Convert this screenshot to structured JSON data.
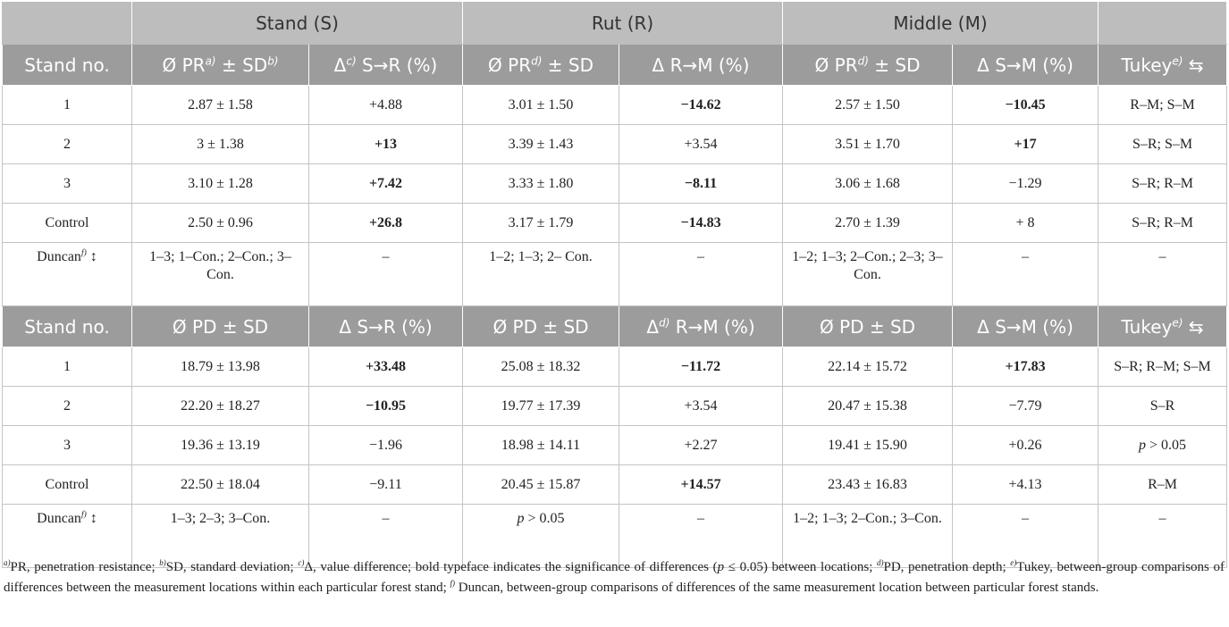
{
  "table": {
    "groups": [
      "Stand (S)",
      "Rut (R)",
      "Middle (M)"
    ],
    "sections": [
      {
        "header": [
          "Stand no.",
          [
            {
              "t": "Ø PR"
            },
            {
              "sup": "a)"
            },
            {
              "t": " ± SD"
            },
            {
              "sup": "b)"
            }
          ],
          [
            {
              "t": "Δ"
            },
            {
              "sup": "c)"
            },
            {
              "t": " S→R (%)"
            }
          ],
          [
            {
              "t": "Ø PR"
            },
            {
              "sup": "d)"
            },
            {
              "t": " ± SD"
            }
          ],
          "Δ R→M (%)",
          [
            {
              "t": "Ø PR"
            },
            {
              "sup": "d)"
            },
            {
              "t": " ± SD"
            }
          ],
          "Δ S→M (%)",
          [
            {
              "t": "Tukey"
            },
            {
              "sup": "e)"
            },
            {
              "t": " ⇆"
            }
          ]
        ],
        "rows": [
          [
            "1",
            "2.87 ± 1.58",
            "+4.88",
            "3.01 ± 1.50",
            [
              {
                "b": "−14.62"
              }
            ],
            "2.57 ± 1.50",
            [
              {
                "b": "−10.45"
              }
            ],
            "R–M; S–M"
          ],
          [
            "2",
            "3 ± 1.38",
            [
              {
                "b": "+13"
              }
            ],
            "3.39 ± 1.43",
            "+3.54",
            "3.51 ± 1.70",
            [
              {
                "b": "+17"
              }
            ],
            "S–R; S–M"
          ],
          [
            "3",
            "3.10 ± 1.28",
            [
              {
                "b": "+7.42"
              }
            ],
            "3.33 ± 1.80",
            [
              {
                "b": "−8.11"
              }
            ],
            "3.06 ± 1.68",
            "−1.29",
            "S–R; R–M"
          ],
          [
            "Control",
            "2.50 ± 0.96",
            [
              {
                "b": "+26.8"
              }
            ],
            "3.17 ± 1.79",
            [
              {
                "b": "−14.83"
              }
            ],
            "2.70 ± 1.39",
            "+ 8",
            "S–R; R–M"
          ],
          [
            [
              {
                "t": "Duncan"
              },
              {
                "sup": "f)"
              },
              {
                "t": " ↕"
              }
            ],
            "1–3; 1–Con.; 2–Con.; 3–Con.",
            "–",
            "1–2; 1–3; 2– Con.",
            "–",
            "1–2; 1–3; 2–Con.; 2–3; 3– Con.",
            "–",
            "–"
          ]
        ]
      },
      {
        "header": [
          "Stand no.",
          "Ø PD ± SD",
          "Δ S→R (%)",
          "Ø PD ± SD",
          [
            {
              "t": "Δ"
            },
            {
              "sup": "d)"
            },
            {
              "t": " R→M (%)"
            }
          ],
          "Ø PD ± SD",
          "Δ S→M (%)",
          [
            {
              "t": "Tukey"
            },
            {
              "sup": "e)"
            },
            {
              "t": " ⇆"
            }
          ]
        ],
        "rows": [
          [
            "1",
            "18.79 ± 13.98",
            [
              {
                "b": "+33.48"
              }
            ],
            "25.08 ± 18.32",
            [
              {
                "b": "−11.72"
              }
            ],
            "22.14 ± 15.72",
            [
              {
                "b": "+17.83"
              }
            ],
            "S–R; R–M; S–M"
          ],
          [
            "2",
            "22.20 ± 18.27",
            [
              {
                "b": "−10.95"
              }
            ],
            "19.77 ± 17.39",
            "+3.54",
            "20.47 ± 15.38",
            "−7.79",
            "S–R"
          ],
          [
            "3",
            "19.36 ± 13.19",
            "−1.96",
            "18.98 ± 14.11",
            "+2.27",
            "19.41 ± 15.90",
            "+0.26",
            [
              {
                "i": "p"
              },
              {
                "t": " > 0.05"
              }
            ]
          ],
          [
            "Control",
            "22.50 ± 18.04",
            "−9.11",
            "20.45 ± 15.87",
            [
              {
                "b": "+14.57"
              }
            ],
            "23.43 ± 16.83",
            "+4.13",
            "R–M"
          ],
          [
            [
              {
                "t": "Duncan"
              },
              {
                "sup": "f)"
              },
              {
                "t": " ↕"
              }
            ],
            "1–3; 2–3; 3–Con.",
            "–",
            [
              {
                "i": "p"
              },
              {
                "t": " > 0.05"
              }
            ],
            "–",
            "1–2; 1–3; 2–Con.; 3–Con.",
            "–",
            "–"
          ]
        ]
      }
    ]
  },
  "footnote": [
    {
      "sup": "a)"
    },
    {
      "t": "PR, penetration resistance; "
    },
    {
      "sup": "b)"
    },
    {
      "t": "SD, standard deviation; "
    },
    {
      "sup": "c)"
    },
    {
      "t": "Δ, value difference; bold typeface indicates the significance of differences ("
    },
    {
      "i": "p"
    },
    {
      "t": " ≤ 0.05) between locations; "
    },
    {
      "sup": "d)"
    },
    {
      "t": "PD, penetration depth; "
    },
    {
      "sup": "e)"
    },
    {
      "t": "Tukey, between-group comparisons of differences between the measurement locations within each particular forest stand; "
    },
    {
      "sup": "f)"
    },
    {
      "t": " Duncan, between-group comparisons of differences of the same measurement location between particular forest stands."
    }
  ]
}
